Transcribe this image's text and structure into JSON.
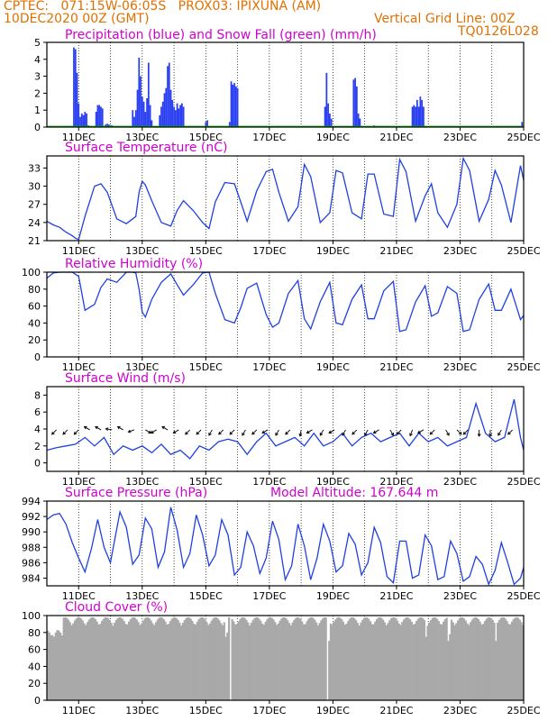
{
  "header": {
    "line1_left": "CPTEC:   071:15W-06:05S   PROX03: IPIXUNA (AM)",
    "line2_left": "10DEC2020 00Z (GMT)",
    "line2_right": "Vertical Grid Line: 00Z",
    "line3_right": "TQ0126L028"
  },
  "colors": {
    "header": "#e07000",
    "title": "#d000d0",
    "line": "#2040e0",
    "precip": "#2a3ff0",
    "snow": "#00b000",
    "cloud": "#a9a9a9",
    "grid": "#000000"
  },
  "x_ticks": [
    "11DEC",
    "13DEC",
    "15DEC",
    "17DEC",
    "19DEC",
    "21DEC",
    "23DEC",
    "25DEC"
  ],
  "chart_data": [
    {
      "type": "bar",
      "title": "Precipitation (blue) and Snow Fall (green) (mm/h)",
      "ylim": [
        0,
        5
      ],
      "yticks": [
        0,
        1,
        2,
        3,
        4,
        5
      ],
      "x_range_days": [
        10.0,
        25.0
      ],
      "series": [
        {
          "name": "Precipitation",
          "x": [
            10.85,
            10.9,
            10.95,
            11.0,
            11.05,
            11.1,
            11.15,
            11.2,
            11.25,
            11.3,
            11.55,
            11.6,
            11.65,
            11.7,
            11.75,
            11.85,
            11.9,
            11.95,
            12.0,
            12.05,
            12.7,
            12.75,
            12.8,
            12.85,
            12.9,
            12.95,
            13.0,
            13.05,
            13.1,
            13.15,
            13.2,
            13.25,
            13.3,
            13.55,
            13.6,
            13.65,
            13.7,
            13.75,
            13.8,
            13.85,
            13.9,
            13.95,
            14.0,
            14.05,
            14.1,
            14.15,
            14.2,
            14.25,
            14.3,
            15.0,
            15.05,
            15.75,
            15.8,
            15.85,
            15.9,
            15.95,
            16.0,
            18.75,
            18.8,
            18.85,
            18.9,
            18.95,
            19.65,
            19.7,
            19.75,
            19.8,
            19.85,
            20.3,
            21.5,
            21.55,
            21.6,
            21.65,
            21.7,
            21.75,
            21.8,
            21.85,
            24.95
          ],
          "values": [
            4.7,
            4.6,
            3.2,
            1.4,
            0.6,
            0.8,
            0.7,
            0.9,
            0.8,
            0.1,
            0.9,
            1.3,
            1.3,
            1.2,
            1.1,
            0.15,
            0.2,
            0.15,
            0.1,
            0.1,
            1.0,
            0.6,
            1.0,
            2.2,
            4.1,
            3.0,
            1.8,
            1.5,
            0.9,
            1.7,
            3.8,
            1.3,
            0.4,
            0.7,
            1.2,
            1.5,
            2.0,
            2.3,
            3.6,
            3.8,
            2.2,
            1.6,
            1.2,
            1.0,
            1.4,
            1.1,
            1.3,
            1.4,
            1.2,
            0.3,
            0.4,
            0.3,
            2.7,
            2.5,
            2.6,
            2.4,
            2.3,
            1.2,
            3.2,
            1.4,
            0.8,
            0.5,
            2.8,
            2.9,
            2.4,
            0.8,
            0.5,
            0.1,
            1.2,
            1.3,
            1.2,
            1.6,
            1.2,
            1.8,
            1.6,
            1.2,
            0.3
          ]
        },
        {
          "name": "Snow Fall",
          "x": [
            10.0,
            25.0
          ],
          "values": [
            0.05,
            0.05
          ]
        }
      ]
    },
    {
      "type": "line",
      "title": "Surface Temperature (nC)",
      "ylim": [
        21,
        35
      ],
      "yticks": [
        21,
        24,
        27,
        30,
        33
      ],
      "series": [
        {
          "name": "Temperature",
          "x": [
            10.0,
            10.2,
            10.4,
            10.6,
            10.8,
            10.9,
            11.0,
            11.2,
            11.5,
            11.7,
            11.9,
            12.2,
            12.5,
            12.7,
            12.8,
            12.9,
            13.0,
            13.1,
            13.3,
            13.6,
            13.9,
            14.1,
            14.3,
            14.6,
            14.9,
            15.1,
            15.3,
            15.6,
            15.9,
            16.1,
            16.3,
            16.6,
            16.9,
            17.1,
            17.3,
            17.6,
            17.9,
            18.1,
            18.3,
            18.6,
            18.9,
            19.1,
            19.3,
            19.6,
            19.9,
            20.1,
            20.3,
            20.6,
            20.9,
            21.1,
            21.3,
            21.6,
            21.9,
            22.1,
            22.3,
            22.6,
            22.9,
            23.1,
            23.3,
            23.6,
            23.9,
            24.1,
            24.3,
            24.6,
            24.9,
            25.0
          ],
          "values": [
            24.2,
            23.6,
            23.2,
            22.4,
            21.8,
            21.4,
            21.2,
            25.0,
            30.0,
            30.4,
            29.0,
            24.6,
            23.8,
            24.6,
            25.0,
            29.0,
            30.8,
            30.2,
            27.6,
            24.0,
            23.4,
            26.0,
            27.6,
            26.0,
            24.0,
            23.0,
            27.4,
            30.6,
            30.4,
            27.4,
            24.2,
            29.2,
            32.4,
            32.8,
            29.0,
            24.2,
            26.6,
            33.6,
            31.6,
            24.0,
            25.6,
            32.6,
            32.2,
            25.6,
            24.6,
            32.0,
            32.0,
            25.4,
            25.0,
            34.4,
            32.4,
            24.2,
            28.4,
            30.4,
            25.6,
            23.2,
            27.0,
            34.6,
            32.6,
            24.2,
            27.8,
            32.6,
            30.2,
            24.0,
            33.4,
            31.0
          ]
        }
      ]
    },
    {
      "type": "line",
      "title": "Relative Humidity (%)",
      "ylim": [
        0,
        100
      ],
      "yticks": [
        0,
        20,
        40,
        60,
        80,
        100
      ],
      "series": [
        {
          "name": "Relative Humidity",
          "x": [
            10.0,
            10.2,
            10.4,
            10.6,
            10.8,
            11.0,
            11.2,
            11.5,
            11.7,
            11.9,
            12.2,
            12.5,
            12.7,
            12.8,
            12.9,
            13.0,
            13.1,
            13.3,
            13.6,
            13.9,
            14.1,
            14.3,
            14.6,
            14.9,
            15.1,
            15.3,
            15.6,
            15.9,
            16.1,
            16.3,
            16.6,
            16.9,
            17.1,
            17.3,
            17.6,
            17.9,
            18.1,
            18.3,
            18.6,
            18.9,
            19.1,
            19.3,
            19.6,
            19.9,
            20.1,
            20.3,
            20.6,
            20.9,
            21.1,
            21.3,
            21.6,
            21.9,
            22.1,
            22.3,
            22.6,
            22.9,
            23.1,
            23.3,
            23.6,
            23.9,
            24.1,
            24.3,
            24.6,
            24.9,
            25.0
          ],
          "values": [
            93,
            99,
            100,
            100,
            100,
            95,
            55,
            62,
            82,
            92,
            88,
            100,
            100,
            99,
            80,
            53,
            47,
            68,
            88,
            98,
            85,
            73,
            85,
            99,
            100,
            75,
            44,
            40,
            58,
            81,
            87,
            50,
            35,
            40,
            75,
            90,
            45,
            33,
            65,
            88,
            40,
            38,
            68,
            85,
            45,
            45,
            78,
            89,
            30,
            32,
            65,
            84,
            48,
            52,
            83,
            75,
            30,
            32,
            68,
            86,
            55,
            55,
            80,
            44,
            49
          ]
        }
      ]
    },
    {
      "type": "line",
      "title": "Surface Wind (m/s)",
      "ylim": [
        -1,
        9
      ],
      "yticks": [
        0,
        2,
        4,
        6,
        8
      ],
      "series": [
        {
          "name": "Wind Speed",
          "x": [
            10.0,
            10.3,
            10.6,
            10.9,
            11.2,
            11.5,
            11.8,
            12.1,
            12.4,
            12.7,
            13.0,
            13.3,
            13.6,
            13.9,
            14.2,
            14.5,
            14.8,
            15.1,
            15.4,
            15.7,
            16.0,
            16.3,
            16.6,
            16.9,
            17.2,
            17.5,
            17.8,
            18.1,
            18.4,
            18.7,
            19.0,
            19.3,
            19.6,
            19.9,
            20.2,
            20.5,
            20.8,
            21.1,
            21.4,
            21.7,
            22.0,
            22.3,
            22.6,
            22.9,
            23.2,
            23.5,
            23.8,
            24.1,
            24.4,
            24.7,
            24.9,
            25.0
          ],
          "values": [
            1.5,
            1.8,
            2.0,
            2.2,
            3.0,
            2.0,
            3.0,
            1.0,
            2.0,
            1.5,
            2.0,
            1.2,
            2.2,
            1.0,
            1.5,
            0.5,
            2.0,
            1.5,
            2.5,
            2.8,
            2.5,
            1.0,
            2.5,
            3.5,
            2.0,
            2.5,
            3.0,
            2.0,
            3.5,
            2.0,
            2.5,
            3.5,
            2.0,
            3.0,
            3.5,
            2.5,
            3.0,
            3.5,
            2.0,
            3.5,
            2.5,
            3.0,
            2.0,
            2.5,
            3.0,
            7.0,
            3.5,
            2.5,
            3.0,
            7.5,
            3.0,
            1.5
          ]
        }
      ],
      "wind_vectors_angle_deg": [
        -135,
        -135,
        -135,
        150,
        150,
        170,
        150,
        -160,
        -30,
        -150,
        150,
        -150,
        -135,
        -135,
        -120,
        -135,
        -135,
        -120,
        -135,
        -150,
        -120,
        -135,
        -100,
        -150,
        -120,
        -150,
        -120,
        -135,
        -120,
        -150,
        -60,
        -135,
        -110,
        -150,
        -135,
        -60,
        -45,
        -135,
        -90,
        -90,
        -120,
        -135
      ]
    },
    {
      "type": "line",
      "title": "Surface Pressure (hPa)",
      "annotation": "Model Altitude: 167.644 m",
      "ylim": [
        983,
        994
      ],
      "yticks": [
        984,
        986,
        988,
        990,
        992,
        994
      ],
      "series": [
        {
          "name": "Pressure",
          "x": [
            10.0,
            10.2,
            10.4,
            10.6,
            10.8,
            11.0,
            11.2,
            11.4,
            11.6,
            11.8,
            12.0,
            12.3,
            12.5,
            12.7,
            12.9,
            13.1,
            13.3,
            13.5,
            13.7,
            13.9,
            14.1,
            14.3,
            14.5,
            14.7,
            14.9,
            15.1,
            15.3,
            15.5,
            15.7,
            15.9,
            16.1,
            16.3,
            16.5,
            16.7,
            16.9,
            17.1,
            17.3,
            17.5,
            17.7,
            17.9,
            18.1,
            18.3,
            18.5,
            18.7,
            18.9,
            19.1,
            19.3,
            19.5,
            19.7,
            19.9,
            20.1,
            20.3,
            20.5,
            20.7,
            20.9,
            21.1,
            21.3,
            21.5,
            21.7,
            21.9,
            22.1,
            22.3,
            22.5,
            22.7,
            22.9,
            23.1,
            23.3,
            23.5,
            23.7,
            23.9,
            24.1,
            24.3,
            24.5,
            24.7,
            24.9,
            25.0
          ],
          "values": [
            991.6,
            992.2,
            992.4,
            991.0,
            988.6,
            986.6,
            984.8,
            987.8,
            991.6,
            988.0,
            986.0,
            992.6,
            990.6,
            985.8,
            987.0,
            991.8,
            990.4,
            985.4,
            987.4,
            993.2,
            990.2,
            985.4,
            987.2,
            992.2,
            989.6,
            985.6,
            987.0,
            991.6,
            989.6,
            984.4,
            985.4,
            990.0,
            988.2,
            984.6,
            986.6,
            991.4,
            989.0,
            983.8,
            985.6,
            991.0,
            988.2,
            983.8,
            986.6,
            991.0,
            988.8,
            984.8,
            985.6,
            989.8,
            988.4,
            984.4,
            986.0,
            990.6,
            988.6,
            984.2,
            983.4,
            988.8,
            988.8,
            984.0,
            984.4,
            989.6,
            988.2,
            983.8,
            984.2,
            988.8,
            987.2,
            983.6,
            984.2,
            986.8,
            985.8,
            983.2,
            985.0,
            988.6,
            986.0,
            983.2,
            984.0,
            985.4
          ]
        }
      ]
    },
    {
      "type": "bar",
      "title": "Cloud Cover (%)",
      "ylim": [
        0,
        100
      ],
      "yticks": [
        0,
        20,
        40,
        60,
        80,
        100
      ],
      "series": [
        {
          "name": "Cloud Cover",
          "step_days": 0.05,
          "values_hint": "mostly 85-100 with dips near 10.2 (~75), 15.6 (~75), 15.75 (~0), 18.8 (~0), 21.9 (~75), 22.6 (~70), 24.1 (~70)"
        }
      ]
    }
  ]
}
